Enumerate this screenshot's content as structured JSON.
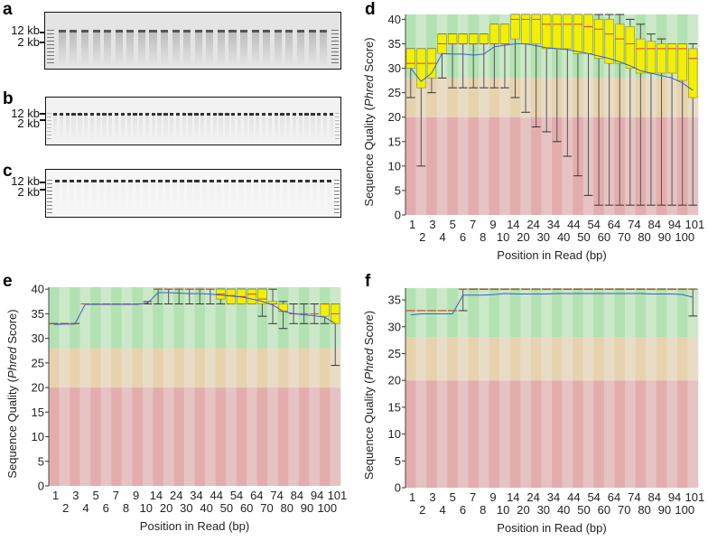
{
  "panels": {
    "a": "a",
    "b": "b",
    "c": "c",
    "d": "d",
    "e": "e",
    "f": "f"
  },
  "gels": [
    {
      "id": "a",
      "lanes": 26,
      "markers": [
        "12 kb",
        "2 kb"
      ],
      "bg": "#e4e4e4"
    },
    {
      "id": "b",
      "lanes": 48,
      "markers": [
        "12 kb",
        "2 kb"
      ],
      "bg": "#f2f2f2"
    },
    {
      "id": "c",
      "lanes": 40,
      "markers": [
        "12 kb",
        "2 kb"
      ],
      "bg": "#f6f6f6"
    }
  ],
  "colors": {
    "box": "#f2ef00",
    "median": "#e8402a",
    "mean": "#3b5fc8",
    "green": [
      "#b2e2b2",
      "#cbe8c8"
    ],
    "orange": [
      "#e6d3ad",
      "#e9dcc6"
    ],
    "red": [
      "#e4adad",
      "#e6c3c3"
    ]
  },
  "chart_data": [
    {
      "id": "d",
      "type": "boxplot",
      "ylabel_pre": "Sequence Quality (",
      "ylabel_it": "Phred",
      "ylabel_post": " Score)",
      "xlabel": "Position in Read (bp)",
      "ylim": [
        0,
        41
      ],
      "yticks": [
        0,
        5,
        10,
        15,
        20,
        25,
        30,
        35,
        40
      ],
      "xtick_labels": [
        "1",
        "2",
        "3",
        "4",
        "5",
        "6",
        "7",
        "8",
        "9",
        "10",
        "14",
        "20",
        "24",
        "30",
        "34",
        "40",
        "44",
        "50",
        "54",
        "60",
        "64",
        "70",
        "74",
        "80",
        "84",
        "90",
        "94",
        "100",
        "101"
      ],
      "groups": [
        "1",
        "2",
        "3",
        "4",
        "5",
        "6",
        "7",
        "8",
        "9",
        "10-14",
        "15-19",
        "20-24",
        "25-29",
        "30-34",
        "35-39",
        "40-44",
        "45-49",
        "50-54",
        "55-59",
        "60-64",
        "65-69",
        "70-74",
        "75-79",
        "80-84",
        "85-89",
        "90-94",
        "95-99",
        "100-101"
      ],
      "median": [
        31,
        31,
        31,
        35,
        35,
        35,
        35,
        35,
        35,
        35,
        40,
        40,
        40,
        39,
        39,
        39,
        39,
        38.5,
        38,
        37,
        36,
        35,
        34,
        34,
        34,
        34,
        34,
        32
      ],
      "q1": [
        30,
        26,
        28,
        33,
        35,
        35,
        35,
        35,
        35,
        35,
        36,
        35,
        35,
        34,
        34,
        34,
        33,
        33,
        32,
        31,
        31,
        30,
        29,
        29,
        29,
        29,
        27.5,
        24
      ],
      "q3": [
        34,
        34,
        34,
        37,
        37,
        37,
        37,
        37,
        39,
        39,
        41,
        41,
        41,
        41,
        41,
        41,
        41,
        41,
        40,
        40,
        39,
        38.5,
        36,
        35.5,
        35,
        35,
        35,
        34
      ],
      "low": [
        24,
        10,
        25,
        28,
        26,
        26,
        26,
        26,
        26,
        26,
        24,
        21,
        18,
        17,
        15,
        12,
        8,
        4,
        2,
        2,
        2,
        2,
        2,
        2,
        2,
        2,
        2,
        2
      ],
      "high": [
        34,
        34,
        34,
        37,
        37,
        37,
        37,
        37,
        39,
        39,
        41,
        41,
        41,
        41,
        41,
        41,
        41,
        41,
        41,
        41,
        41,
        40,
        39,
        37,
        36,
        35,
        35,
        35
      ],
      "mean": [
        30,
        27.3,
        29,
        33,
        32.9,
        32.9,
        32.7,
        32.9,
        34.4,
        34.7,
        35,
        35,
        34.6,
        34.2,
        34,
        33.8,
        33.4,
        33,
        32.5,
        32,
        31.3,
        30.5,
        29.5,
        29,
        28.5,
        28,
        27,
        25.5
      ]
    },
    {
      "id": "e",
      "type": "boxplot",
      "ylabel_pre": "Sequence Quality (",
      "ylabel_it": "Phred",
      "ylabel_post": " Score)",
      "xlabel": "Position in Read (bp)",
      "ylim": [
        0,
        40.4
      ],
      "yticks": [
        0,
        5,
        10,
        15,
        20,
        25,
        30,
        35,
        40
      ],
      "xtick_labels": [
        "1",
        "2",
        "3",
        "4",
        "5",
        "6",
        "7",
        "8",
        "9",
        "10",
        "14",
        "20",
        "24",
        "30",
        "34",
        "40",
        "44",
        "50",
        "54",
        "60",
        "64",
        "70",
        "74",
        "80",
        "84",
        "90",
        "94",
        "100",
        "101"
      ],
      "groups": [
        "1",
        "2",
        "3",
        "4",
        "5",
        "6",
        "7",
        "8",
        "9",
        "10-14",
        "15-19",
        "20-24",
        "25-29",
        "30-34",
        "35-39",
        "40-44",
        "45-49",
        "50-54",
        "55-59",
        "60-64",
        "65-69",
        "70-74",
        "75-79",
        "80-84",
        "85-89",
        "90-94",
        "95-99",
        "100-101"
      ],
      "median": [
        33,
        33,
        33,
        37,
        37,
        37,
        37,
        37,
        37,
        37.5,
        40,
        40,
        40,
        40,
        40,
        40,
        39,
        38.7,
        38.5,
        39,
        38,
        37,
        35.5,
        35,
        35,
        35,
        37,
        35
      ],
      "q1": [
        33,
        33,
        33,
        37,
        37,
        37,
        37,
        37,
        37,
        37.5,
        40,
        40,
        40,
        40,
        40,
        40,
        38,
        37,
        37,
        37,
        37,
        37,
        35.5,
        35,
        35,
        35,
        34.5,
        33
      ],
      "q3": [
        33,
        33,
        33,
        37,
        37,
        37,
        37,
        37,
        37,
        37.5,
        40,
        40,
        40,
        40,
        40,
        40,
        40,
        40,
        40,
        40,
        40,
        37.5,
        37,
        35,
        35,
        35,
        37,
        37
      ],
      "low": [
        33,
        33,
        33,
        37,
        37,
        37,
        37,
        37,
        37,
        37,
        37,
        37,
        37,
        37,
        37,
        37,
        37,
        37,
        37,
        37,
        34.5,
        33,
        32,
        33,
        33,
        33,
        33,
        24.5
      ],
      "high": [
        33,
        33,
        33,
        37,
        37,
        37,
        37,
        37,
        37,
        37.5,
        40,
        40,
        40,
        40,
        40,
        40,
        40,
        40,
        40,
        40,
        40,
        40,
        37.5,
        37,
        37,
        37,
        37,
        37
      ],
      "mean": [
        32.8,
        32.9,
        32.9,
        36.9,
        36.9,
        36.9,
        36.9,
        36.9,
        36.9,
        37.2,
        39.3,
        39.3,
        39.2,
        39.1,
        39.1,
        39,
        38.8,
        38.6,
        38.4,
        38,
        37.5,
        36.8,
        35.5,
        35,
        34.8,
        34.6,
        34.3,
        33
      ]
    },
    {
      "id": "f",
      "type": "boxplot",
      "ylabel_pre": "Sequence Quality (",
      "ylabel_it": "Phred",
      "ylabel_post": " Score)",
      "xlabel": "Position in Read (bp)",
      "ylim": [
        0,
        37.2
      ],
      "yticks": [
        0,
        5,
        10,
        15,
        20,
        25,
        30,
        35
      ],
      "xtick_labels": [
        "1",
        "2",
        "3",
        "4",
        "5",
        "6",
        "7",
        "8",
        "9",
        "10",
        "14",
        "20",
        "24",
        "30",
        "34",
        "40",
        "44",
        "50",
        "54",
        "60",
        "64",
        "70",
        "74",
        "80",
        "84",
        "90",
        "94",
        "100",
        "101"
      ],
      "groups": [
        "1",
        "2",
        "3",
        "4",
        "5",
        "6",
        "7",
        "8",
        "9",
        "10-14",
        "15-19",
        "20-24",
        "25-29",
        "30-34",
        "35-39",
        "40-44",
        "45-49",
        "50-54",
        "55-59",
        "60-64",
        "65-69",
        "70-74",
        "75-79",
        "80-84",
        "85-89",
        "90-94",
        "95-99",
        "100-101"
      ],
      "median": [
        33,
        33,
        33,
        33,
        33,
        37,
        37,
        37,
        37,
        37,
        37,
        37,
        37,
        37,
        37,
        37,
        37,
        37,
        37,
        37,
        37,
        37,
        37,
        37,
        37,
        37,
        37,
        37
      ],
      "q1": [
        33,
        33,
        33,
        33,
        33,
        37,
        37,
        37,
        37,
        37,
        37,
        37,
        37,
        37,
        37,
        37,
        37,
        37,
        37,
        37,
        37,
        37,
        37,
        37,
        37,
        37,
        37,
        37
      ],
      "q3": [
        33,
        33,
        33,
        33,
        33,
        37,
        37,
        37,
        37,
        37,
        37,
        37,
        37,
        37,
        37,
        37,
        37,
        37,
        37,
        37,
        37,
        37,
        37,
        37,
        37,
        37,
        37,
        37
      ],
      "low": [
        33,
        33,
        33,
        33,
        33,
        33,
        37,
        37,
        37,
        37,
        37,
        37,
        37,
        37,
        37,
        37,
        37,
        37,
        37,
        37,
        37,
        37,
        37,
        37,
        37,
        37,
        37,
        32
      ],
      "high": [
        33,
        33,
        33,
        33,
        33,
        37,
        37,
        37,
        37,
        37,
        37,
        37,
        37,
        37,
        37,
        37,
        37,
        37,
        37,
        37,
        37,
        37,
        37,
        37,
        37,
        37,
        37,
        37
      ],
      "mean": [
        32.2,
        32.4,
        32.4,
        32.4,
        32.4,
        35.9,
        35.9,
        35.9,
        36,
        36.2,
        36.1,
        36.1,
        36.1,
        36.1,
        36.2,
        36.2,
        36.2,
        36.2,
        36.2,
        36.2,
        36.2,
        36.2,
        36.2,
        36.1,
        36.1,
        36.1,
        36,
        35.5
      ]
    }
  ]
}
